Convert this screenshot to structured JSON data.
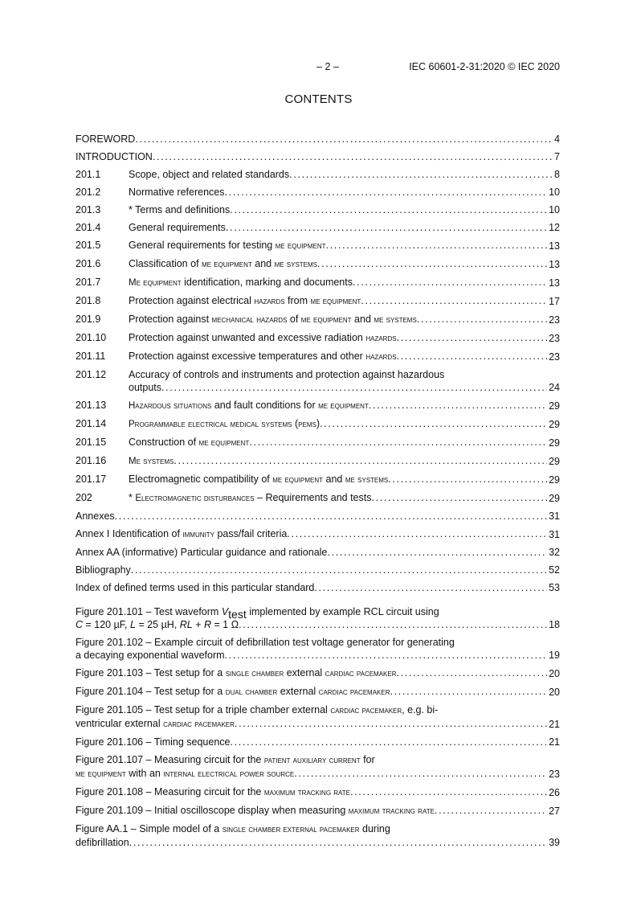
{
  "header": {
    "page_number": "– 2 –",
    "document_id": "IEC 60601-2-31:2020 © IEC 2020"
  },
  "title": "CONTENTS",
  "toc": [
    {
      "num": "",
      "title": [
        {
          "t": "FOREWORD"
        }
      ],
      "page": "4"
    },
    {
      "num": "",
      "title": [
        {
          "t": "INTRODUCTION"
        }
      ],
      "page": "7"
    },
    {
      "num": "201.1",
      "title": [
        {
          "t": "Scope, object and related standards"
        }
      ],
      "page": "8"
    },
    {
      "num": "201.2",
      "title": [
        {
          "t": "Normative references"
        }
      ],
      "page": "10"
    },
    {
      "num": "201.3",
      "title": [
        {
          "t": "* Terms and definitions"
        }
      ],
      "page": "10"
    },
    {
      "num": "201.4",
      "title": [
        {
          "t": "General requirements"
        }
      ],
      "page": "12"
    },
    {
      "num": "201.5",
      "title": [
        {
          "t": "General requirements for testing "
        },
        {
          "t": "me equipment",
          "s": "sc"
        }
      ],
      "page": "13"
    },
    {
      "num": "201.6",
      "title": [
        {
          "t": "Classification of "
        },
        {
          "t": "me equipment",
          "s": "sc"
        },
        {
          "t": " and "
        },
        {
          "t": "me systems",
          "s": "sc"
        }
      ],
      "page": "13"
    },
    {
      "num": "201.7",
      "title": [
        {
          "t": "Me equipment",
          "s": "sc"
        },
        {
          "t": " identification, marking and documents"
        }
      ],
      "page": "13"
    },
    {
      "num": "201.8",
      "title": [
        {
          "t": "Protection against electrical "
        },
        {
          "t": "hazards",
          "s": "sc"
        },
        {
          "t": " from "
        },
        {
          "t": "me equipment",
          "s": "sc"
        }
      ],
      "page": "17"
    },
    {
      "num": "201.9",
      "title": [
        {
          "t": "Protection against "
        },
        {
          "t": "mechanical hazards",
          "s": "sc"
        },
        {
          "t": " of "
        },
        {
          "t": "me equipment",
          "s": "sc"
        },
        {
          "t": " and "
        },
        {
          "t": "me systems",
          "s": "sc"
        }
      ],
      "page": "23"
    },
    {
      "num": "201.10",
      "title": [
        {
          "t": "Protection against unwanted and excessive radiation "
        },
        {
          "t": "hazards",
          "s": "sc"
        }
      ],
      "page": "23"
    },
    {
      "num": "201.11",
      "title": [
        {
          "t": "Protection against excessive temperatures and other "
        },
        {
          "t": "hazards",
          "s": "sc"
        }
      ],
      "page": "23"
    },
    {
      "num": "201.12",
      "title": [
        {
          "t": "Accuracy of controls and instruments and protection against hazardous\noutputs"
        }
      ],
      "page": "24"
    },
    {
      "num": "201.13",
      "title": [
        {
          "t": "Hazardous situations",
          "s": "sc"
        },
        {
          "t": " and fault conditions for "
        },
        {
          "t": "me equipment",
          "s": "sc"
        }
      ],
      "page": "29"
    },
    {
      "num": "201.14",
      "title": [
        {
          "t": "Programmable electrical medical systems",
          "s": "sc"
        },
        {
          "t": " ("
        },
        {
          "t": "pems",
          "s": "sc"
        },
        {
          "t": ")"
        }
      ],
      "page": "29"
    },
    {
      "num": "201.15",
      "title": [
        {
          "t": "Construction of "
        },
        {
          "t": "me equipment",
          "s": "sc"
        }
      ],
      "page": "29"
    },
    {
      "num": "201.16",
      "title": [
        {
          "t": "Me systems",
          "s": "sc"
        }
      ],
      "page": "29"
    },
    {
      "num": "201.17",
      "title": [
        {
          "t": "Electromagnetic compatibility of "
        },
        {
          "t": "me equipment",
          "s": "sc"
        },
        {
          "t": " and "
        },
        {
          "t": "me systems",
          "s": "sc"
        }
      ],
      "page": "29"
    },
    {
      "num": "202",
      "title": [
        {
          "t": "* "
        },
        {
          "t": "Electromagnetic disturbances",
          "s": "sc"
        },
        {
          "t": " – Requirements and tests"
        }
      ],
      "page": "29"
    },
    {
      "num": "",
      "title": [
        {
          "t": "Annexes"
        }
      ],
      "page": "31"
    },
    {
      "num": "",
      "title": [
        {
          "t": "Annex I  Identification of "
        },
        {
          "t": "immunity",
          "s": "sc"
        },
        {
          "t": " pass/fail criteria"
        }
      ],
      "page": "31"
    },
    {
      "num": "",
      "title": [
        {
          "t": "Annex AA (informative)  Particular guidance and rationale"
        }
      ],
      "page": "32"
    },
    {
      "num": "",
      "title": [
        {
          "t": "Bibliography"
        }
      ],
      "page": "52"
    },
    {
      "num": "",
      "title": [
        {
          "t": "Index of defined terms used in this particular standard"
        }
      ],
      "page": "53"
    }
  ],
  "figures": [
    {
      "title": [
        {
          "t": "Figure 201.101 – Test waveform "
        },
        {
          "t": "V",
          "s": "it"
        },
        {
          "t": "test",
          "s": "sub"
        },
        {
          "t": " implemented by example RCL circuit  using\n"
        },
        {
          "t": "C",
          "s": "it"
        },
        {
          "t": " = 120 µF, "
        },
        {
          "t": "L",
          "s": "it"
        },
        {
          "t": " = 25 µH, "
        },
        {
          "t": "RL",
          "s": "it"
        },
        {
          "t": " + "
        },
        {
          "t": "R",
          "s": "it"
        },
        {
          "t": " = 1 Ω"
        }
      ],
      "page": "18"
    },
    {
      "title": [
        {
          "t": "Figure 201.102 – Example circuit of defibrillation test voltage generator  for generating\na decaying exponential waveform"
        }
      ],
      "page": "19"
    },
    {
      "title": [
        {
          "t": "Figure 201.103 – Test setup for a "
        },
        {
          "t": "single chamber",
          "s": "sc"
        },
        {
          "t": " external "
        },
        {
          "t": "cardiac pacemaker",
          "s": "sc"
        }
      ],
      "page": "20"
    },
    {
      "title": [
        {
          "t": "Figure 201.104 – Test setup for a "
        },
        {
          "t": "dual chamber",
          "s": "sc"
        },
        {
          "t": " external "
        },
        {
          "t": "cardiac pacemaker",
          "s": "sc"
        }
      ],
      "page": "20"
    },
    {
      "title": [
        {
          "t": "Figure 201.105 – Test setup for a triple chamber external "
        },
        {
          "t": "cardiac pacemaker",
          "s": "sc"
        },
        {
          "t": ", e.g. bi-\nventricular external "
        },
        {
          "t": "cardiac pacemaker",
          "s": "sc"
        }
      ],
      "page": "21"
    },
    {
      "title": [
        {
          "t": "Figure 201.106 – Timing sequence"
        }
      ],
      "page": "21"
    },
    {
      "title": [
        {
          "t": "Figure 201.107 – Measuring circuit for the "
        },
        {
          "t": "patient auxiliary current",
          "s": "sc"
        },
        {
          "t": " for\n"
        },
        {
          "t": "me equipment",
          "s": "sc"
        },
        {
          "t": " with an "
        },
        {
          "t": "internal electrical power source",
          "s": "sc"
        }
      ],
      "page": "23"
    },
    {
      "title": [
        {
          "t": "Figure 201.108 – Measuring circuit for the "
        },
        {
          "t": "maximum tracking rate",
          "s": "sc"
        }
      ],
      "page": "26"
    },
    {
      "title": [
        {
          "t": "Figure 201.109 – Initial oscilloscope display when measuring "
        },
        {
          "t": "maximum tracking rate",
          "s": "sc"
        }
      ],
      "page": "27"
    },
    {
      "title": [
        {
          "t": "Figure AA.1 – Simple model of a "
        },
        {
          "t": "single chamber external pacemaker",
          "s": "sc"
        },
        {
          "t": " during\ndefibrillation"
        }
      ],
      "page": "39"
    }
  ]
}
